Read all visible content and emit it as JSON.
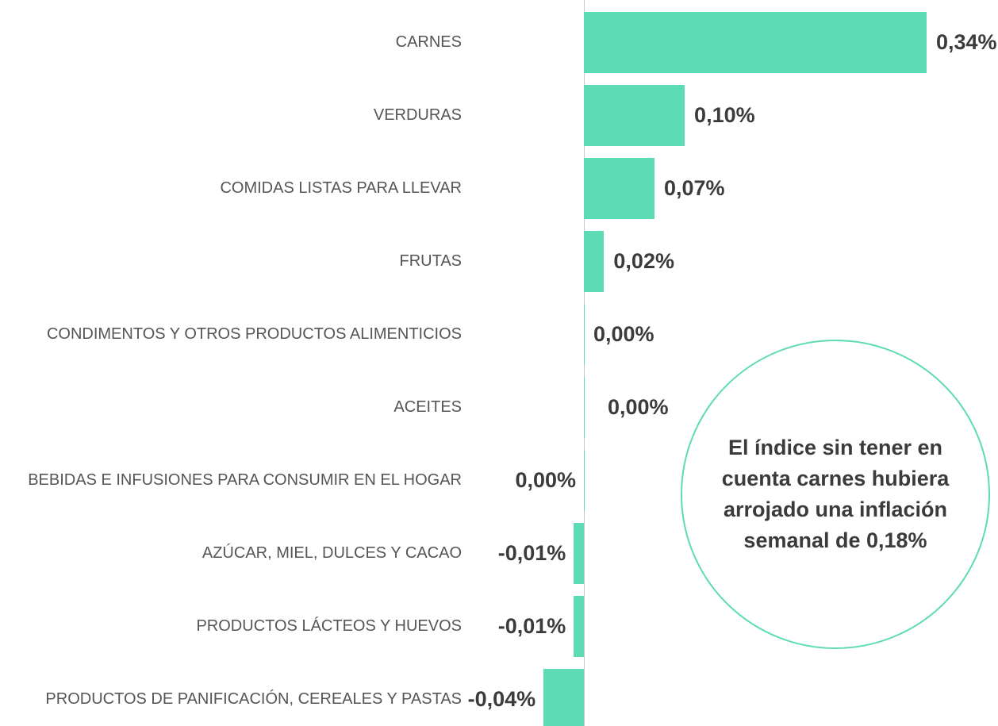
{
  "chart_data": {
    "type": "bar",
    "orientation": "horizontal",
    "categories": [
      "CARNES",
      "VERDURAS",
      "COMIDAS LISTAS PARA LLEVAR",
      "FRUTAS",
      "CONDIMENTOS Y OTROS PRODUCTOS ALIMENTICIOS",
      "ACEITES",
      "BEBIDAS E INFUSIONES PARA CONSUMIR EN EL HOGAR",
      "AZÚCAR, MIEL, DULCES Y CACAO",
      "PRODUCTOS LÁCTEOS Y HUEVOS",
      "PRODUCTOS DE PANIFICACIÓN, CEREALES Y PASTAS"
    ],
    "values": [
      0.34,
      0.1,
      0.07,
      0.02,
      0.0,
      0.0,
      0.0,
      -0.01,
      -0.01,
      -0.04
    ],
    "value_labels": [
      "0,34%",
      "0,10%",
      "0,07%",
      "0,02%",
      "0,00%",
      "0,00%",
      "0,00%",
      "-0,01%",
      "-0,01%",
      "-0,04%"
    ],
    "color": "#5ddbb5",
    "annotation": "El índice sin tener en cuenta carnes hubiera arrojado una inflación semanal de 0,18%"
  }
}
